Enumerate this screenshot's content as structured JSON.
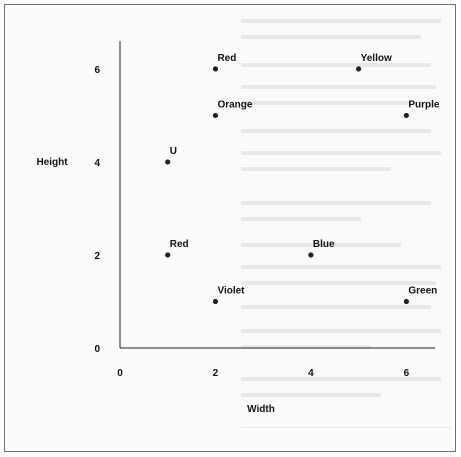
{
  "chart_data": {
    "type": "scatter",
    "title": "",
    "xlabel": "Width",
    "ylabel": "Height",
    "xlim": [
      0,
      6.6
    ],
    "ylim": [
      0,
      6.6
    ],
    "xticks": [
      "0",
      "2",
      "4",
      "6"
    ],
    "yticks": [
      "0",
      "2",
      "4",
      "6"
    ],
    "grid": false,
    "points": [
      {
        "label": "Red",
        "x": 2,
        "y": 6
      },
      {
        "label": "Yellow",
        "x": 5,
        "y": 6
      },
      {
        "label": "Orange",
        "x": 2,
        "y": 5
      },
      {
        "label": "Purple",
        "x": 6,
        "y": 5
      },
      {
        "label": "U",
        "x": 1,
        "y": 4
      },
      {
        "label": "Red",
        "x": 1,
        "y": 2
      },
      {
        "label": "Blue",
        "x": 4,
        "y": 2
      },
      {
        "label": "Violet",
        "x": 2,
        "y": 1
      },
      {
        "label": "Green",
        "x": 6,
        "y": 1
      }
    ],
    "colors": {
      "marker": "#222222",
      "axis": "#222222",
      "text": "#111111"
    }
  }
}
